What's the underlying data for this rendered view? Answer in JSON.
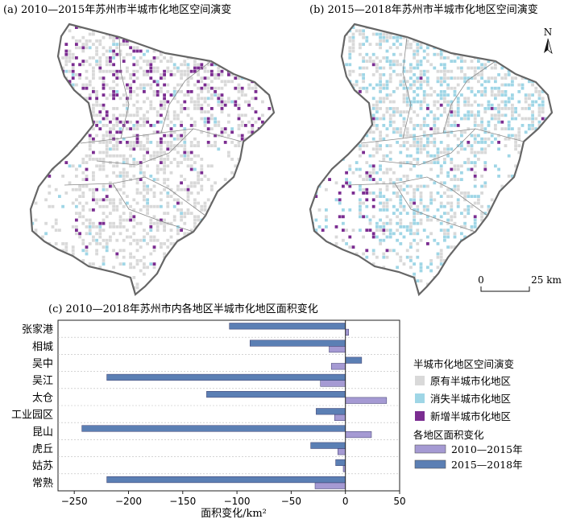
{
  "map_a": {
    "title": "(a) 2010—2015年苏州市半城市化地区空间演变"
  },
  "map_b": {
    "title": "(b) 2015—2018年苏州市半城市化地区空间演变"
  },
  "north_arrow": {
    "label": "N"
  },
  "scale_bar": {
    "zero": "0",
    "end": "25 km"
  },
  "legend_spatial": {
    "title": "半城市化地区空间演变",
    "items": [
      {
        "label": "原有半城市化地区",
        "color": "#d9d9d9"
      },
      {
        "label": "消失半城市化地区",
        "color": "#9fd6e6"
      },
      {
        "label": "新增半城市化地区",
        "color": "#7b2d91"
      }
    ]
  },
  "legend_area": {
    "title": "各地区面积变化",
    "items": [
      {
        "label": "2010—2015年",
        "color": "#a59ad3"
      },
      {
        "label": "2015—2018年",
        "color": "#5b7fb4"
      }
    ]
  },
  "chart_data": {
    "type": "bar",
    "orientation": "horizontal",
    "title": "(c) 2010—2018年苏州市内各地区半城市化地区面积变化",
    "xlabel": "面积变化/km²",
    "ylabel": "",
    "xlim": [
      -265,
      50
    ],
    "xticks": [
      -250,
      -200,
      -150,
      -100,
      -50,
      0,
      50
    ],
    "tick_labels": [
      "−250",
      "−200",
      "−150",
      "−100",
      "−50",
      "0",
      "50"
    ],
    "categories": [
      "张家港",
      "相城",
      "吴中",
      "吴江",
      "太仓",
      "工业园区",
      "昆山",
      "虎丘",
      "姑苏",
      "常熟"
    ],
    "series": [
      {
        "name": "2010—2015年",
        "color": "#a59ad3",
        "values": [
          3,
          -15,
          -13,
          -23,
          38,
          -10,
          24,
          -7,
          -2,
          -28
        ]
      },
      {
        "name": "2015—2018年",
        "color": "#5b7fb4",
        "values": [
          -107,
          -88,
          15,
          -220,
          -128,
          -27,
          -243,
          -32,
          -9,
          -220
        ]
      }
    ]
  }
}
